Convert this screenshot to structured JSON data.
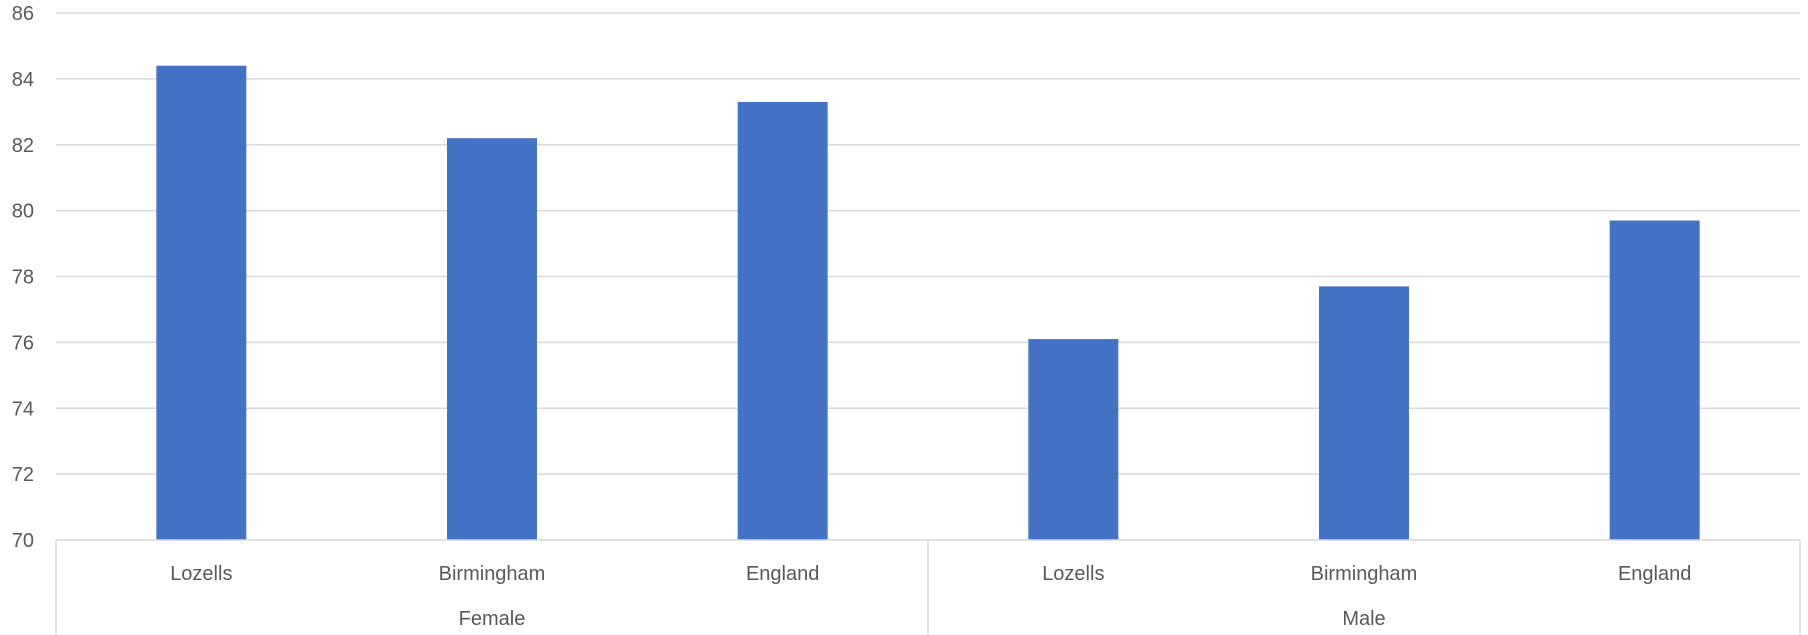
{
  "chart_data": {
    "type": "bar",
    "title": "",
    "xlabel": "",
    "ylabel": "",
    "ylim": [
      70,
      86
    ],
    "yticks": [
      70,
      72,
      74,
      76,
      78,
      80,
      82,
      84,
      86
    ],
    "grid": true,
    "legend": "none",
    "groups": [
      {
        "label": "Female",
        "categories": [
          "Lozells",
          "Birmingham",
          "England"
        ],
        "values": [
          84.4,
          82.2,
          83.3
        ]
      },
      {
        "label": "Male",
        "categories": [
          "Lozells",
          "Birmingham",
          "England"
        ],
        "values": [
          76.1,
          77.7,
          79.7
        ]
      }
    ],
    "colors": {
      "bar": "#4472C4",
      "grid": "#D9D9D9",
      "axis_text": "#595959"
    }
  }
}
